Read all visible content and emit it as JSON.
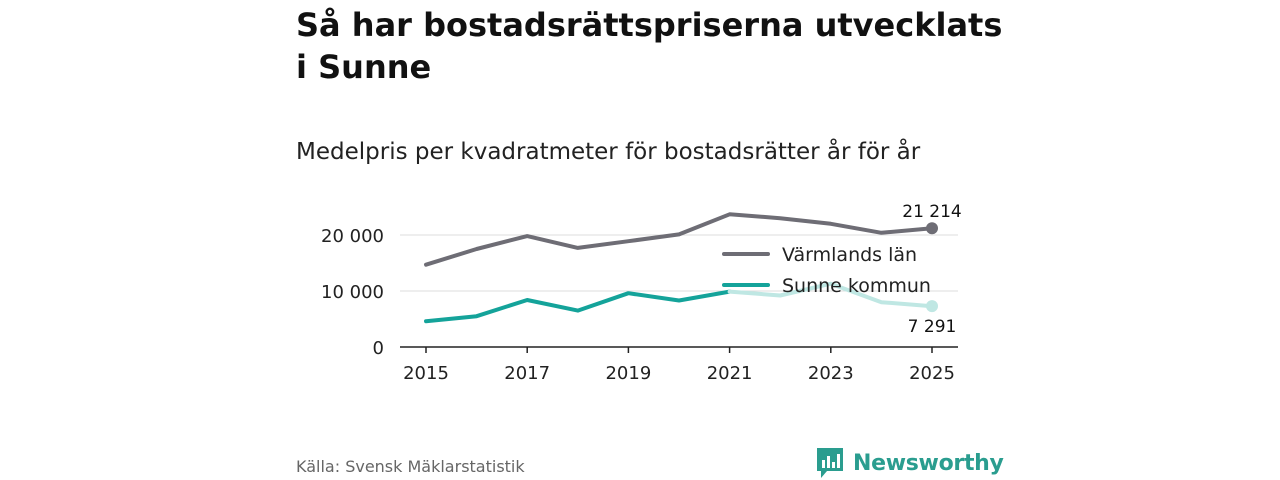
{
  "title": "Så har bostadsrättspriserna utvecklats i Sunne",
  "subtitle": "Medelpris per kvadratmeter för bostadsrätter år för år",
  "source": "Källa: Svensk Mäklarstatistik",
  "brand": "Newsworthy",
  "colors": {
    "lan": "#6e6d75",
    "kommun": "#14a39a",
    "kommun_faded": "#bfe7e3",
    "axis": "#222222",
    "grid": "#dddddd",
    "brand": "#2a9d8f"
  },
  "chart_data": {
    "type": "line",
    "x": [
      2015,
      2016,
      2017,
      2018,
      2019,
      2020,
      2021,
      2022,
      2023,
      2024,
      2025
    ],
    "x_ticks": [
      2015,
      2017,
      2019,
      2021,
      2023,
      2025
    ],
    "x_tick_labels": [
      "2015",
      "2017",
      "2019",
      "2021",
      "2023",
      "2025"
    ],
    "y_ticks": [
      0,
      10000,
      20000
    ],
    "y_tick_labels": [
      "0",
      "10 000",
      "20 000"
    ],
    "ylim": [
      0,
      25000
    ],
    "xlim": [
      2015,
      2025
    ],
    "grid": true,
    "legend_position": "center-right",
    "series": [
      {
        "name": "Värmlands län",
        "key": "lan",
        "values": [
          14700,
          17500,
          19800,
          17700,
          18900,
          20100,
          23700,
          23000,
          22000,
          20400,
          21214
        ],
        "end_label": "21 214"
      },
      {
        "name": "Sunne kommun",
        "key": "kommun",
        "values": [
          4600,
          5500,
          8400,
          6500,
          9600,
          8300,
          9900,
          9200,
          11300,
          8000,
          7291
        ],
        "end_label": "7 291",
        "faded_from_index": 6
      }
    ]
  }
}
